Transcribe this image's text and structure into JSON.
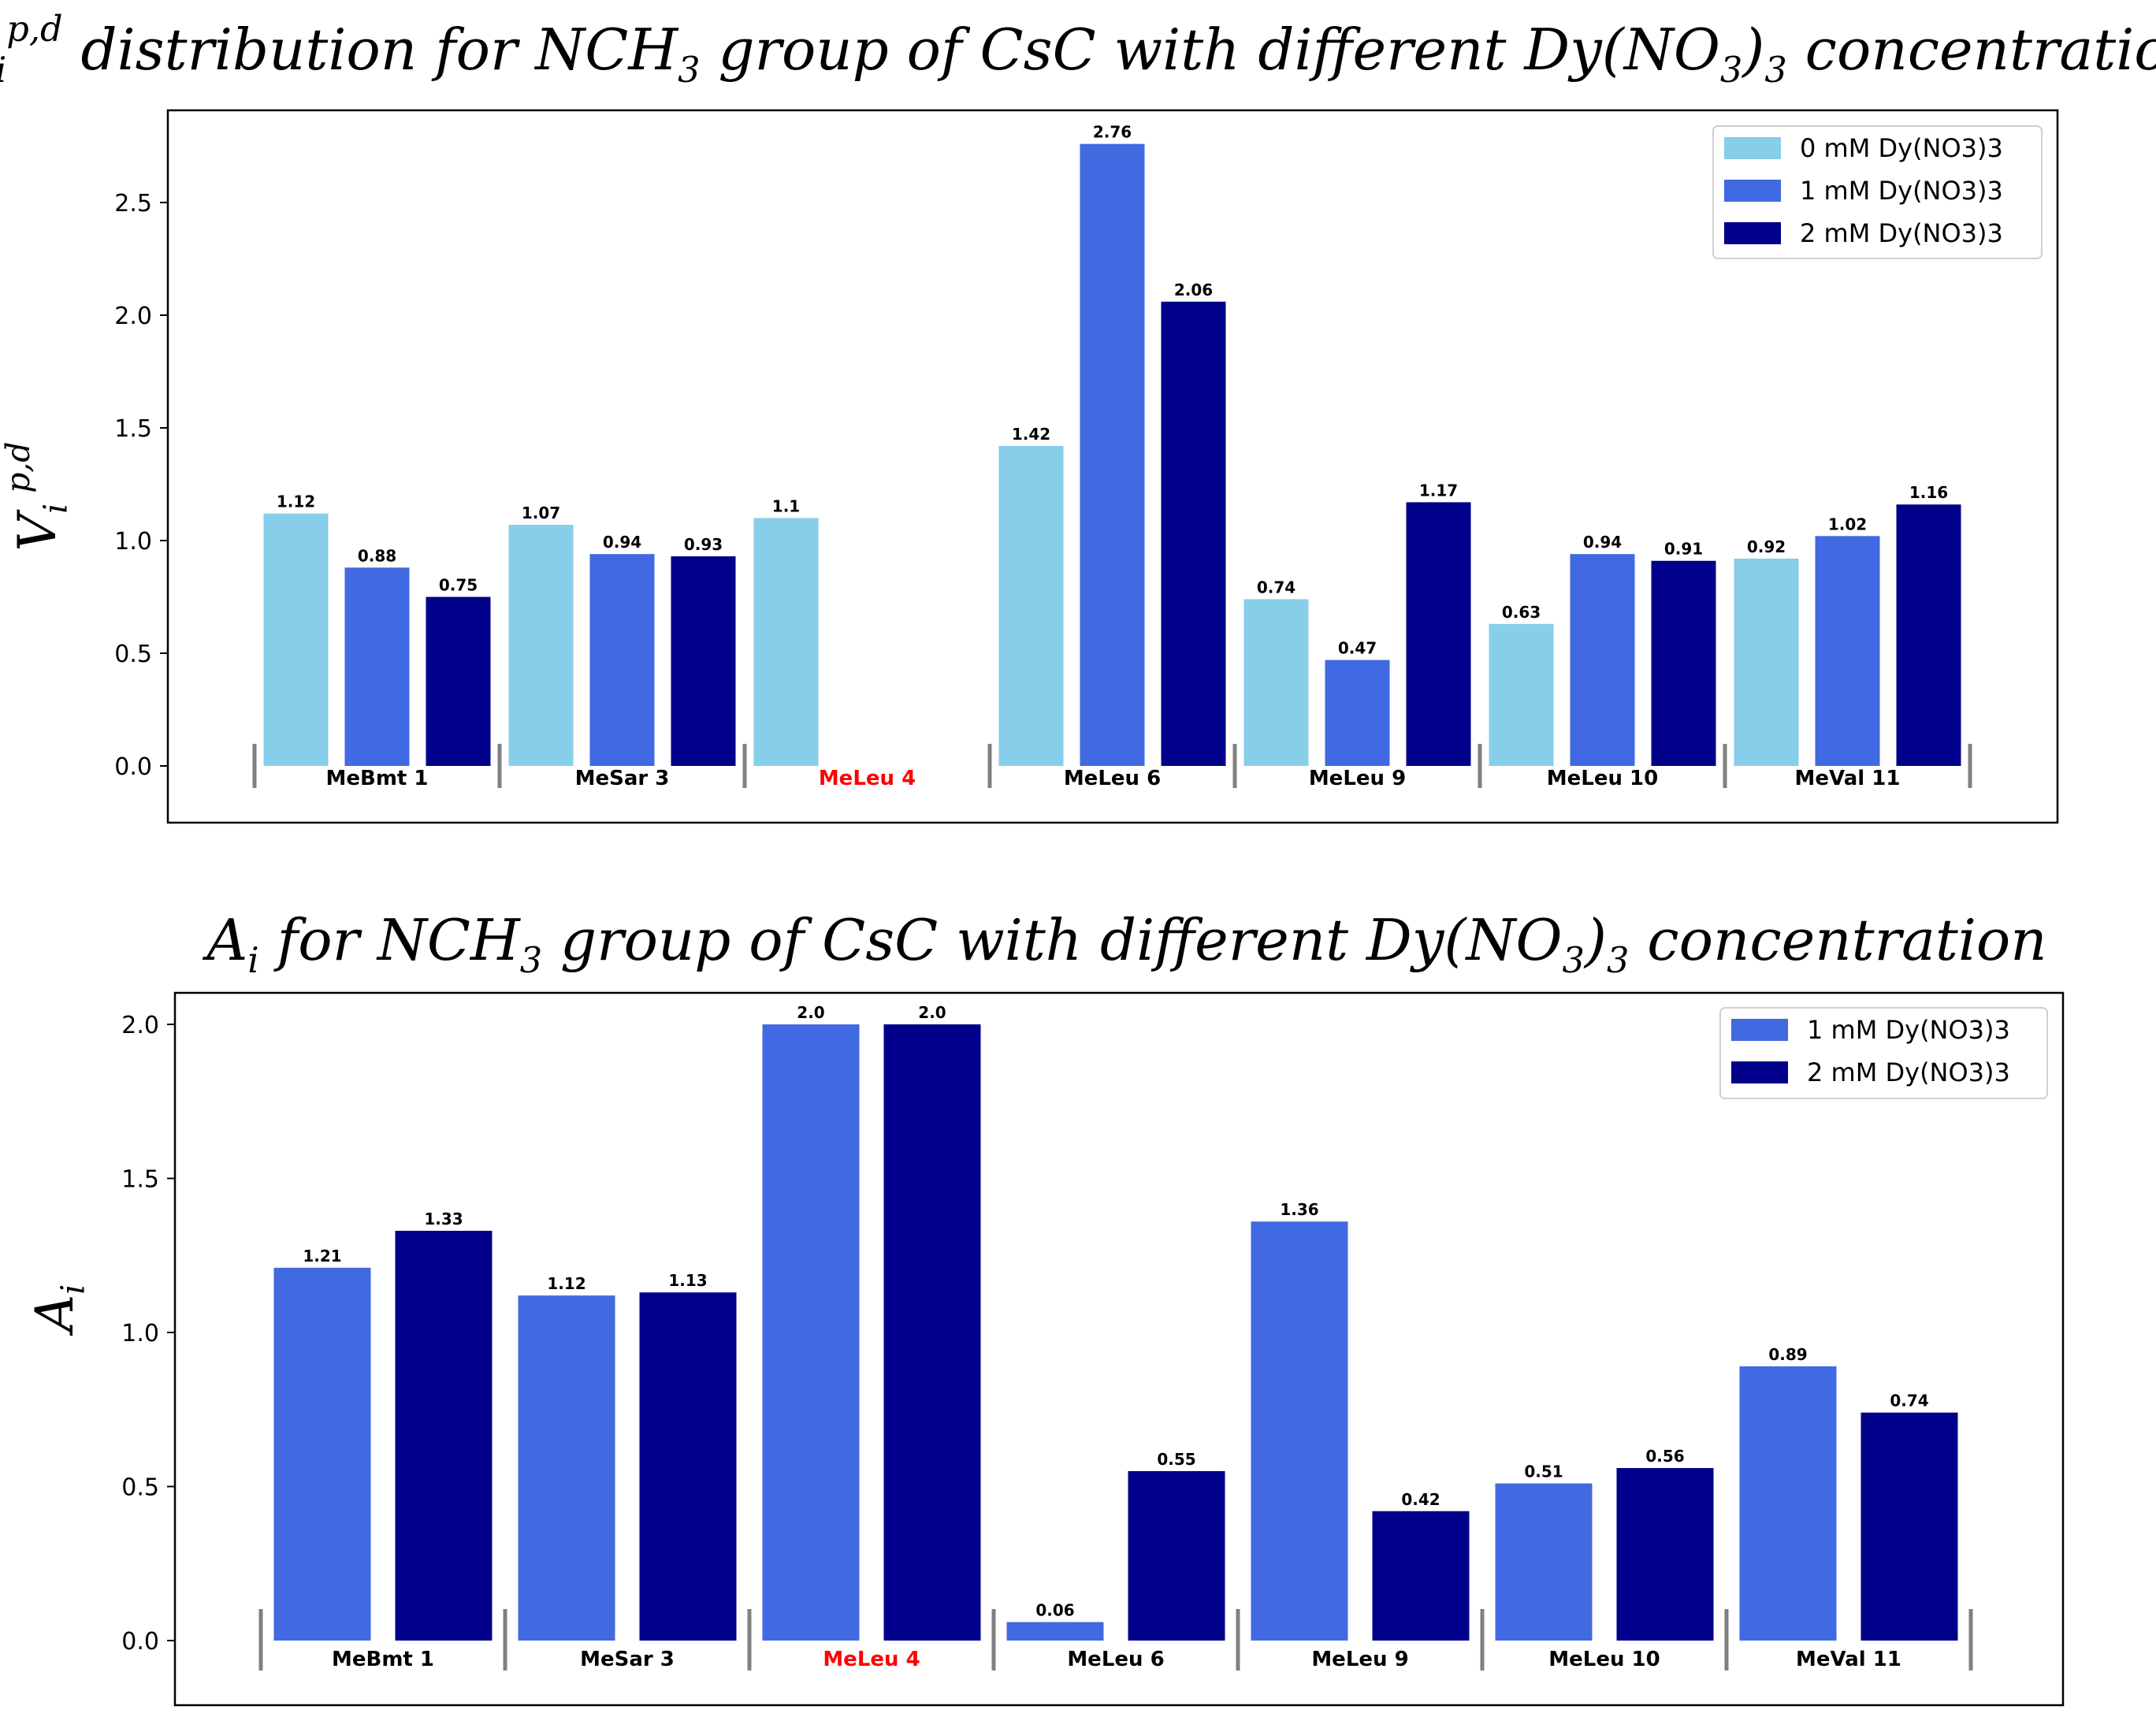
{
  "chart_data": [
    {
      "type": "bar",
      "title_parts": [
        {
          "t": "V"
        },
        {
          "t": "i",
          "s": "sub"
        },
        {
          "t": "p,d",
          "s": "sup"
        },
        {
          "t": "  distribution  for NCH"
        },
        {
          "t": "3",
          "s": "sub"
        },
        {
          "t": " group of CsC with different Dy(NO"
        },
        {
          "t": "3",
          "s": "sub"
        },
        {
          "t": ")"
        },
        {
          "t": "3",
          "s": "sub"
        },
        {
          "t": "  concentration"
        }
      ],
      "ylabel_parts": [
        {
          "t": "V"
        },
        {
          "t": "i",
          "s": "sub"
        },
        {
          "t": " p,d",
          "s": "sup"
        }
      ],
      "categories": [
        "MeBmt 1",
        "MeSar 3",
        "MeLeu 4",
        "MeLeu 6",
        "MeLeu 9",
        "MeLeu 10",
        "MeVal 11"
      ],
      "highlight_category": "MeLeu 4",
      "highlight_color": "#ff0000",
      "series": [
        {
          "name": "0 mM Dy(NO3)3",
          "color": "#87ceeb",
          "values": [
            1.12,
            1.07,
            1.1,
            1.42,
            0.74,
            0.63,
            0.92
          ],
          "labels": [
            "1.12",
            "1.07",
            "1.1",
            "1.42",
            "0.74",
            "0.63",
            "0.92"
          ]
        },
        {
          "name": "1 mM Dy(NO3)3",
          "color": "#4169e1",
          "values": [
            0.88,
            0.94,
            null,
            2.76,
            0.47,
            0.94,
            1.02
          ],
          "labels": [
            "0.88",
            "0.94",
            null,
            "2.76",
            "0.47",
            "0.94",
            "1.02"
          ]
        },
        {
          "name": "2 mM Dy(NO3)3",
          "color": "#00008b",
          "values": [
            0.75,
            0.93,
            null,
            2.06,
            1.17,
            0.91,
            1.16
          ],
          "labels": [
            "0.75",
            "0.93",
            null,
            "2.06",
            "1.17",
            "0.91",
            "1.16"
          ]
        }
      ],
      "yticks": [
        "0.0",
        "0.5",
        "1.0",
        "1.5",
        "2.0",
        "2.5"
      ],
      "ylim": [
        -0.3,
        2.88
      ],
      "legend_placement": "top-right"
    },
    {
      "type": "bar",
      "title_parts": [
        {
          "t": "A"
        },
        {
          "t": "i",
          "s": "sub"
        },
        {
          "t": "  for NCH"
        },
        {
          "t": "3",
          "s": "sub"
        },
        {
          "t": " group of CsC with different Dy(NO"
        },
        {
          "t": "3",
          "s": "sub"
        },
        {
          "t": ")"
        },
        {
          "t": "3",
          "s": "sub"
        },
        {
          "t": "  concentration"
        }
      ],
      "ylabel_parts": [
        {
          "t": "A"
        },
        {
          "t": "i",
          "s": "sub"
        }
      ],
      "categories": [
        "MeBmt 1",
        "MeSar 3",
        "MeLeu 4",
        "MeLeu 6",
        "MeLeu 9",
        "MeLeu 10",
        "MeVal 11"
      ],
      "highlight_category": "MeLeu 4",
      "highlight_color": "#ff0000",
      "series": [
        {
          "name": "1 mM Dy(NO3)3",
          "color": "#4169e1",
          "values": [
            1.21,
            1.12,
            2.0,
            0.06,
            1.36,
            0.51,
            0.89
          ],
          "labels": [
            "1.21",
            "1.12",
            "2.0",
            "0.06",
            "1.36",
            "0.51",
            "0.89"
          ]
        },
        {
          "name": "2 mM Dy(NO3)3",
          "color": "#00008b",
          "values": [
            1.33,
            1.13,
            2.0,
            0.55,
            0.42,
            0.56,
            0.74
          ],
          "labels": [
            "1.33",
            "1.13",
            "2.0",
            "0.55",
            "0.42",
            "0.56",
            "0.74"
          ]
        }
      ],
      "yticks": [
        "0.0",
        "0.5",
        "1.0",
        "1.5",
        "2.0"
      ],
      "ylim": [
        -0.2,
        2.1
      ],
      "legend_placement": "top-right"
    }
  ]
}
